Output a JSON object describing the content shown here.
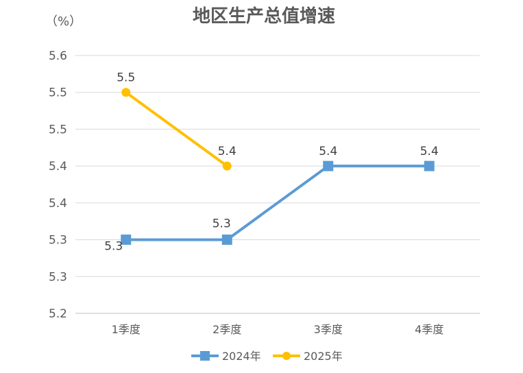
{
  "chart_data": {
    "type": "line",
    "title": "地区生产总值增速",
    "unit_label": "（%）",
    "categories": [
      "1季度",
      "2季度",
      "3季度",
      "4季度"
    ],
    "y_tick_labels": [
      "5.6",
      "5.5",
      "5.5",
      "5.4",
      "5.4",
      "5.3",
      "5.3",
      "5.2"
    ],
    "ylim": [
      5.2,
      5.55
    ],
    "grid": true,
    "legend_position": "bottom",
    "series": [
      {
        "name": "2024年",
        "color": "#5B9BD5",
        "marker": "square",
        "values": [
          5.3,
          5.3,
          5.4,
          5.4
        ],
        "value_positions": [
          5.3,
          5.3,
          5.4,
          5.4
        ],
        "labels": [
          "5.3",
          "5.3",
          "5.4",
          "5.4"
        ]
      },
      {
        "name": "2025年",
        "color": "#FFC000",
        "marker": "circle",
        "values": [
          5.5,
          5.4,
          null,
          null
        ],
        "value_positions": [
          5.5,
          5.4,
          null,
          null
        ],
        "labels": [
          "5.5",
          "5.4",
          null,
          null
        ]
      }
    ]
  }
}
